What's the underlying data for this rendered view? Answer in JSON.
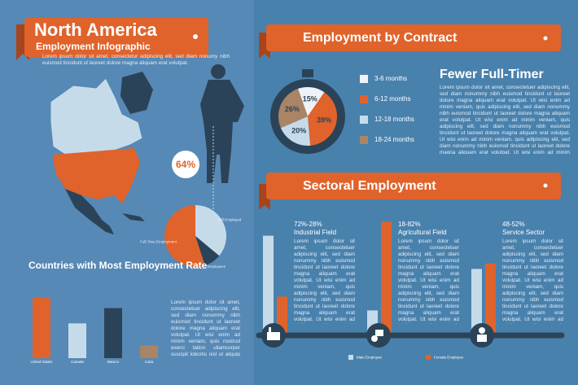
{
  "header": {
    "title": "North America",
    "subtitle": "Employment Infographic",
    "text": "Lorem ipsum dolor sit amet, consectetur adipiscing elit, sed diam nonumy nibh euismod tincidunt ut laoreet dolore magna aliquam erat volutpat."
  },
  "left_text": "Lorem ipsum dolor sit amet, consectetuer adipiscing elit, sed diam nonummy nibh euismod tincidunt ut laoreet dolore magna aliquam erat volutpat. Ut wisi enim ad minim veniam, quis nostrud exerci tation ullamcorper suscipit lobortis nisl ut aliquip ex ea commodo consequat. Duis autem vel eum iriure dolor in hendrerit in vulputate velit esse molestie consequat.",
  "contract_section": {
    "title": "Employment by Contract",
    "heading": "Fewer Full-Timer",
    "text": "Lorem ipsum dolor sit amet, consectetuer adipiscing elit, sed diam nonummy nibh euismod tincidunt ut laoreet dolore magna aliquam erat volutpat. Ut wisi enim ad minim veniam, quis adipiscing elit, sed diam nonummy nibh euismod tincidunt ut laoreet dolore magna aliquam erat volutpat. Ut wisi enim ad minim veniam, quis adipiscing elit, sed diam nonummy nibh euismod tincidunt ut laoreet dolore magna aliquam erat volutpat. Ut wisi enim ad minim veniam, quis adipiscing elit, sed diam nonummy nibh euismod tincidunt ut laoreet dolore magna aliquam erat volutpat. Ut wisi enim ad minim veniam, quis adipiscing elit, nonummy nibh euismod tincidunt."
  },
  "sector_section": {
    "title": "Sectoral Employment"
  },
  "chart_data": [
    {
      "type": "bar",
      "title": "Countries with Most Employment Rate",
      "categories": [
        "United States",
        "Canada",
        "Mexico",
        "Cuba"
      ],
      "values": [
        72,
        41,
        59,
        15
      ],
      "colors": [
        "#e0632b",
        "#c6dbea",
        "#2b4358",
        "#a98565"
      ]
    },
    {
      "type": "pie",
      "annotation": "64%",
      "categories": [
        "Self-Employed",
        "Employees",
        "Full-Time Employment"
      ],
      "values": [
        36,
        9,
        55
      ],
      "colors": [
        "#c6dbea",
        "#2b4358",
        "#e0632b"
      ]
    },
    {
      "type": "pie",
      "categories": [
        "3-6 months",
        "6-12 months",
        "12-18 months",
        "18-24 months"
      ],
      "values": [
        15,
        39,
        20,
        26
      ],
      "value_labels": [
        "15%",
        "39%",
        "20%",
        "26%"
      ],
      "colors": [
        "#eef3f7",
        "#e0632b",
        "#c6dbea",
        "#a98565"
      ]
    },
    {
      "type": "grouped-bar",
      "categories": [
        "Industrial Field",
        "Agricultural Field",
        "Service Sector"
      ],
      "group_labels": [
        "72%-28%",
        "18-82%",
        "48-52%"
      ],
      "texts": [
        "Lorem ipsum dolor sit amet, consectetuer adipiscing elit, sed diam nonummy nibh euismod tincidunt ut laoreet dolore magna aliquam erat volutpat. Ut wisi enim ad minim veniam, quis adipiscing elit, sed diam nonummy nibh euismod tincidunt ut laoreet dolore magna aliquam erat volutpat. Ut wisi enim ad minim veniam, quis adipiscing elit. Ante dolore magna aliquam erat volutpat. Ut wisi enim ad minim veniam, quis adipiscing.",
        "Lorem ipsum dolor sit amet, consectetuer adipiscing elit, sed diam nonummy nibh euismod tincidunt ut laoreet dolore magna aliquam erat volutpat. Ut wisi enim ad minim veniam, quis adipiscing elit, sed diam nonummy nibh euismod tincidunt ut laoreet dolore magna aliquam erat volutpat. Ut wisi enim ad minim veniam, quis adipiscing elit. Ante dolore magna aliquam erat volutpat. Ut wisi enim ad minim veniam, quis adipiscing.",
        "Lorem ipsum dolor sit amet, consectetuer adipiscing elit, sed diam nonummy nibh euismod tincidunt ut laoreet dolore magna aliquam erat volutpat. Ut wisi enim ad minim veniam, quis adipiscing elit, sed diam nonummy nibh euismod tincidunt ut laoreet dolore magna aliquam erat volutpat. Ut wisi enim ad minim veniam, quis adipiscing elit. Ante dolore magna aliquam erat volutpat. Ut wisi enim ad minim veniam, quis adipiscing."
      ],
      "series": [
        {
          "name": "Male Employee",
          "color": "#c6dbea",
          "values": [
            72,
            18,
            48
          ]
        },
        {
          "name": "Female Employee",
          "color": "#e0632b",
          "values": [
            28,
            82,
            52
          ]
        }
      ]
    }
  ]
}
